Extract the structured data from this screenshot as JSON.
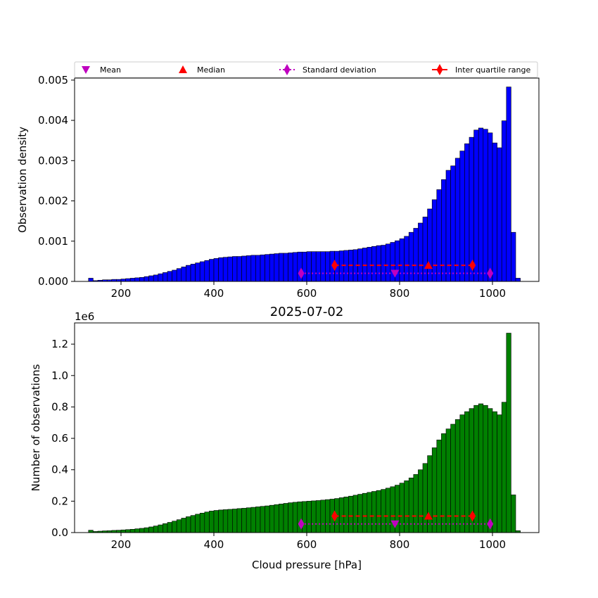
{
  "chart_data": [
    {
      "type": "bar",
      "panel": "density",
      "xlabel": "",
      "ylabel": "Observation density",
      "xlim": [
        100,
        1100
      ],
      "ylim": [
        0,
        0.00505
      ],
      "xticks": [
        200,
        400,
        600,
        800,
        1000
      ],
      "yticks": [
        0.0,
        0.001,
        0.002,
        0.003,
        0.004,
        0.005
      ],
      "ytick_labels": [
        "0.000",
        "0.001",
        "0.002",
        "0.003",
        "0.004",
        "0.005"
      ],
      "bar_color": "#0000ff",
      "bins": {
        "start": 130,
        "width": 10,
        "values": [
          8e-05,
          2e-05,
          3e-05,
          4e-05,
          4e-05,
          5e-05,
          5e-05,
          6e-05,
          7e-05,
          8e-05,
          9e-05,
          0.0001,
          0.00012,
          0.00014,
          0.00016,
          0.00019,
          0.00022,
          0.00025,
          0.00028,
          0.00032,
          0.00036,
          0.0004,
          0.00043,
          0.00046,
          0.00049,
          0.00052,
          0.00055,
          0.00057,
          0.00059,
          0.0006,
          0.00061,
          0.00062,
          0.00062,
          0.00063,
          0.00064,
          0.00065,
          0.00065,
          0.00066,
          0.00067,
          0.00068,
          0.00069,
          0.0007,
          0.0007,
          0.00071,
          0.00072,
          0.00073,
          0.00073,
          0.00074,
          0.00074,
          0.00074,
          0.00074,
          0.00074,
          0.00075,
          0.00075,
          0.00076,
          0.00077,
          0.00078,
          0.00079,
          0.00081,
          0.00083,
          0.00085,
          0.00087,
          0.00089,
          0.0009,
          0.00093,
          0.00097,
          0.00101,
          0.00106,
          0.00112,
          0.00122,
          0.00132,
          0.00145,
          0.0016,
          0.0018,
          0.00203,
          0.00228,
          0.00253,
          0.00276,
          0.00287,
          0.00306,
          0.00324,
          0.00342,
          0.00358,
          0.00376,
          0.00381,
          0.00378,
          0.00369,
          0.00344,
          0.00332,
          0.00399,
          0.00483,
          0.00122,
          8e-05
        ]
      },
      "series": [
        {
          "name": "Mean",
          "marker": "triangle-down",
          "color": "#bf00bf",
          "x": [
            790
          ],
          "y": [
            0.0002
          ]
        },
        {
          "name": "Median",
          "marker": "triangle-up",
          "color": "#ff0000",
          "x": [
            862
          ],
          "y": [
            0.0004
          ]
        },
        {
          "name": "Standard deviation",
          "marker": "diamond",
          "line": "dotted",
          "color": "#bf00bf",
          "x": [
            588,
            995
          ],
          "y": [
            0.0002,
            0.0002
          ]
        },
        {
          "name": "Inter quartile range",
          "marker": "diamond",
          "line": "dashed",
          "color": "#ff0000",
          "x": [
            660,
            957
          ],
          "y": [
            0.0004,
            0.0004
          ]
        }
      ],
      "legend": {
        "placement": "top",
        "entries": [
          "Mean",
          "Median",
          "Standard deviation",
          "Inter quartile range"
        ]
      }
    },
    {
      "type": "bar",
      "panel": "counts",
      "title": "2025-07-02",
      "xlabel": "Cloud pressure [hPa]",
      "ylabel": "Number of observations",
      "offset_label": "1e6",
      "xlim": [
        100,
        1100
      ],
      "ylim": [
        0,
        1.335
      ],
      "xticks": [
        200,
        400,
        600,
        800,
        1000
      ],
      "yticks": [
        0.0,
        0.2,
        0.4,
        0.6,
        0.8,
        1.0,
        1.2
      ],
      "ytick_labels": [
        "0.0",
        "0.2",
        "0.4",
        "0.6",
        "0.8",
        "1.0",
        "1.2"
      ],
      "bar_color": "#008000",
      "bins": {
        "start": 130,
        "width": 10,
        "values": [
          0.015,
          0.007,
          0.009,
          0.011,
          0.012,
          0.014,
          0.015,
          0.017,
          0.019,
          0.021,
          0.024,
          0.027,
          0.031,
          0.036,
          0.042,
          0.049,
          0.057,
          0.065,
          0.073,
          0.082,
          0.092,
          0.101,
          0.109,
          0.117,
          0.124,
          0.131,
          0.137,
          0.141,
          0.144,
          0.146,
          0.148,
          0.15,
          0.153,
          0.155,
          0.158,
          0.161,
          0.164,
          0.167,
          0.17,
          0.174,
          0.178,
          0.182,
          0.186,
          0.19,
          0.193,
          0.196,
          0.198,
          0.2,
          0.202,
          0.204,
          0.207,
          0.21,
          0.213,
          0.217,
          0.222,
          0.227,
          0.232,
          0.238,
          0.244,
          0.25,
          0.256,
          0.262,
          0.268,
          0.275,
          0.283,
          0.292,
          0.302,
          0.315,
          0.33,
          0.348,
          0.37,
          0.4,
          0.44,
          0.49,
          0.54,
          0.59,
          0.63,
          0.66,
          0.69,
          0.72,
          0.75,
          0.77,
          0.79,
          0.81,
          0.82,
          0.81,
          0.79,
          0.77,
          0.75,
          0.83,
          1.27,
          0.24,
          0.012
        ]
      },
      "series": [
        {
          "name": "Mean",
          "marker": "triangle-down",
          "color": "#bf00bf",
          "x": [
            790
          ],
          "y": [
            0.055
          ]
        },
        {
          "name": "Median",
          "marker": "triangle-up",
          "color": "#ff0000",
          "x": [
            862
          ],
          "y": [
            0.105
          ]
        },
        {
          "name": "Standard deviation",
          "marker": "diamond",
          "line": "dotted",
          "color": "#bf00bf",
          "x": [
            588,
            995
          ],
          "y": [
            0.055,
            0.055
          ]
        },
        {
          "name": "Inter quartile range",
          "marker": "diamond",
          "line": "dashed",
          "color": "#ff0000",
          "x": [
            660,
            957
          ],
          "y": [
            0.105,
            0.105
          ]
        }
      ]
    }
  ]
}
